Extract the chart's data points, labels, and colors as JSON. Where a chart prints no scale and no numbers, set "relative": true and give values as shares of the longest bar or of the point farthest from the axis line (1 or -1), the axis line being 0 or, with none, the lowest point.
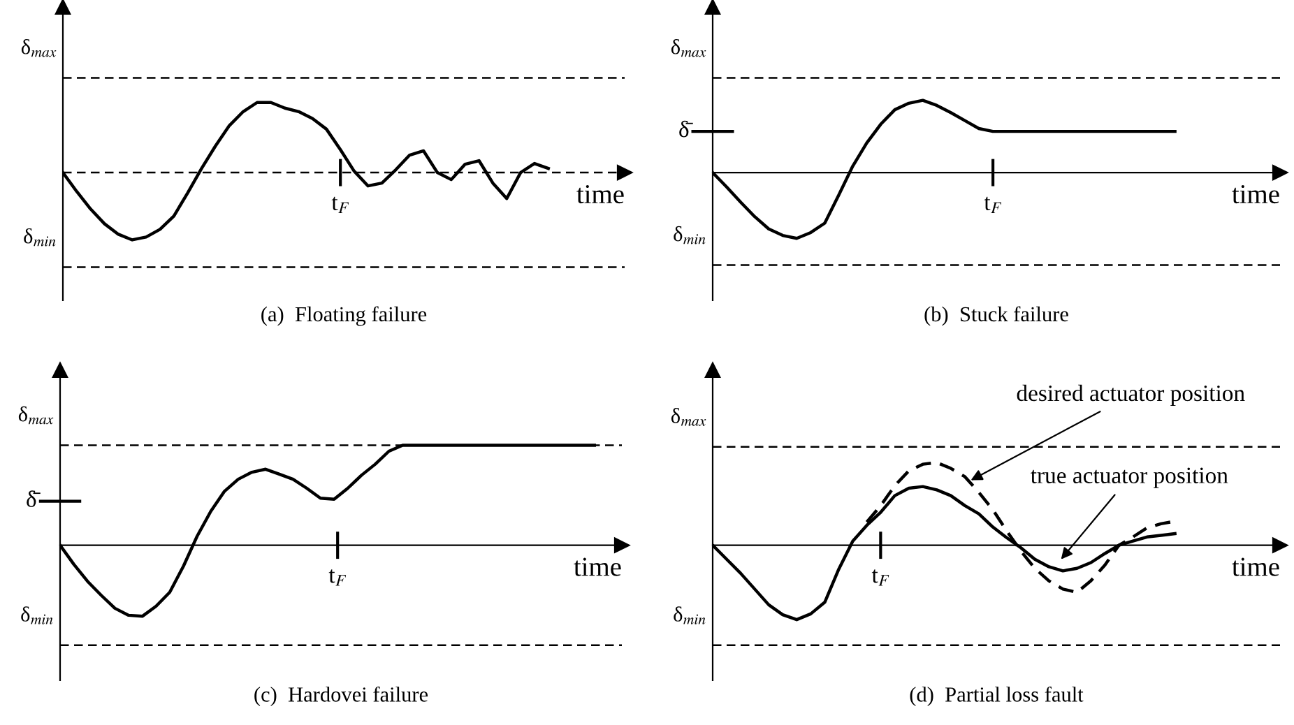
{
  "chart_data": [
    {
      "type": "line",
      "relative": true,
      "title": "(a)  Floating failure",
      "xlabel": "time",
      "annotations": [
        "t$_{F}$"
      ],
      "categories": [
        null,
        null,
        null,
        null,
        null,
        null,
        null,
        null,
        null,
        null,
        null,
        null,
        null,
        null,
        null,
        null,
        null,
        null,
        null,
        null,
        null,
        null,
        null,
        null,
        null,
        null,
        null,
        null,
        null,
        null,
        null,
        null,
        null,
        null,
        null,
        null
      ],
      "series": [
        {
          "color": "#000000",
          "line_style": "solid",
          "values": [
            0,
            -0.27,
            -0.52,
            -0.73,
            -0.88,
            -0.96,
            -0.92,
            -0.81,
            -0.62,
            -0.29,
            0.06,
            0.38,
            0.67,
            0.87,
            1,
            1,
            0.92,
            0.87,
            0.77,
            0.62,
            0.33,
            0.02,
            -0.19,
            -0.15,
            0.04,
            0.25,
            0.31,
            0,
            -0.1,
            0.12,
            0.17,
            -0.15,
            -0.37,
            0,
            0.13,
            0.06
          ]
        }
      ],
      "ref_lines": [
        {
          "axis": "y",
          "value": 1.35,
          "label": "δ$_{max}$",
          "line_style": "dashed"
        },
        {
          "axis": "y",
          "value": 0,
          "label": null,
          "line_style": "dashed"
        },
        {
          "axis": "y",
          "value": -1.35,
          "label": "δ$_{min}$",
          "line_style": "dashed"
        }
      ]
    },
    {
      "type": "line",
      "relative": true,
      "title": "(b)  Stuck failure",
      "xlabel": "time",
      "annotations": [
        "t$_{F}$"
      ],
      "categories": [
        null,
        null,
        null,
        null,
        null,
        null,
        null,
        null,
        null,
        null,
        null,
        null,
        null,
        null,
        null,
        null,
        null,
        null,
        null,
        null,
        null,
        null,
        null,
        null,
        null,
        null,
        null,
        null,
        null,
        null,
        null,
        null,
        null,
        null
      ],
      "series": [
        {
          "color": "#000000",
          "line_style": "solid",
          "values": [
            0,
            -0.2,
            -0.41,
            -0.61,
            -0.78,
            -0.87,
            -0.91,
            -0.83,
            -0.7,
            -0.31,
            0.09,
            0.41,
            0.67,
            0.87,
            0.96,
            1,
            0.93,
            0.83,
            0.72,
            0.61,
            0.57,
            0.57,
            0.57,
            0.57,
            0.57,
            0.57,
            0.57,
            0.57,
            0.57,
            0.57,
            0.57,
            0.57,
            0.57,
            0.57
          ]
        }
      ],
      "ref_lines": [
        {
          "axis": "y",
          "value": 1.31,
          "label": "δ$_{max}$",
          "line_style": "dashed"
        },
        {
          "axis": "y",
          "value": 0.57,
          "label": "δ̄",
          "line_style": "solid"
        },
        {
          "axis": "y",
          "value": -1.28,
          "label": "δ$_{min}$",
          "line_style": "dashed"
        }
      ]
    },
    {
      "type": "line",
      "relative": true,
      "title": "(c)  Hardovei failure",
      "xlabel": "time",
      "annotations": [
        "t$_{F}$"
      ],
      "categories": [
        null,
        null,
        null,
        null,
        null,
        null,
        null,
        null,
        null,
        null,
        null,
        null,
        null,
        null,
        null,
        null,
        null,
        null,
        null,
        null,
        null,
        null,
        null,
        null,
        null,
        null,
        null,
        null,
        null,
        null,
        null,
        null,
        null,
        null,
        null,
        null,
        null,
        null,
        null,
        null
      ],
      "series": [
        {
          "color": "#000000",
          "line_style": "solid",
          "values": [
            0,
            -0.19,
            -0.36,
            -0.5,
            -0.63,
            -0.7,
            -0.71,
            -0.61,
            -0.47,
            -0.21,
            0.09,
            0.34,
            0.54,
            0.66,
            0.73,
            0.76,
            0.71,
            0.66,
            0.57,
            0.47,
            0.46,
            0.57,
            0.7,
            0.81,
            0.94,
            1,
            1,
            1,
            1,
            1,
            1,
            1,
            1,
            1,
            1,
            1,
            1,
            1,
            1,
            1
          ]
        }
      ],
      "ref_lines": [
        {
          "axis": "y",
          "value": 1,
          "label": "δ$_{max}$",
          "line_style": "dashed"
        },
        {
          "axis": "y",
          "value": 0.44,
          "label": "δ̄",
          "line_style": "solid"
        },
        {
          "axis": "y",
          "value": -1,
          "label": "δ$_{min}$",
          "line_style": "dashed"
        }
      ]
    },
    {
      "type": "line",
      "relative": true,
      "title": "(d)  Partial loss fault",
      "xlabel": "time",
      "categories": [
        null,
        null,
        null,
        null,
        null,
        null,
        null,
        null,
        null,
        null,
        null,
        null,
        null,
        null,
        null,
        null,
        null,
        null,
        null,
        null,
        null,
        null,
        null,
        null,
        null,
        null,
        null,
        null,
        null,
        null,
        null,
        null,
        null,
        null
      ],
      "series": [
        {
          "color": "#000000",
          "line_style": "solid",
          "values": [
            0,
            -0.17,
            -0.34,
            -0.53,
            -0.72,
            -0.84,
            -0.9,
            -0.83,
            -0.69,
            -0.29,
            0.05,
            0.24,
            0.4,
            0.6,
            0.69,
            0.71,
            0.67,
            0.6,
            0.48,
            0.38,
            0.22,
            0.09,
            -0.03,
            -0.17,
            -0.26,
            -0.31,
            -0.28,
            -0.21,
            -0.1,
            0,
            0.05,
            0.1,
            0.12,
            0.14
          ]
        },
        {
          "color": "#000000",
          "line_style": "dashed",
          "values": [
            null,
            null,
            null,
            null,
            null,
            null,
            null,
            null,
            null,
            null,
            null,
            0.28,
            0.48,
            0.72,
            0.9,
            0.98,
            1,
            0.93,
            0.83,
            0.64,
            0.43,
            0.17,
            -0.07,
            -0.28,
            -0.43,
            -0.53,
            -0.57,
            -0.43,
            -0.24,
            0,
            0.1,
            0.21,
            0.26,
            0.29
          ]
        }
      ],
      "annotations": [
        "t$_{F}$",
        "desired actuator position",
        "true actuator position"
      ],
      "ref_lines": [
        {
          "axis": "y",
          "value": 1.19,
          "label": "δ$_{max}$",
          "line_style": "dashed"
        },
        {
          "axis": "y",
          "value": -1.21,
          "label": "δ$_{min}$",
          "line_style": "dashed"
        }
      ]
    }
  ]
}
